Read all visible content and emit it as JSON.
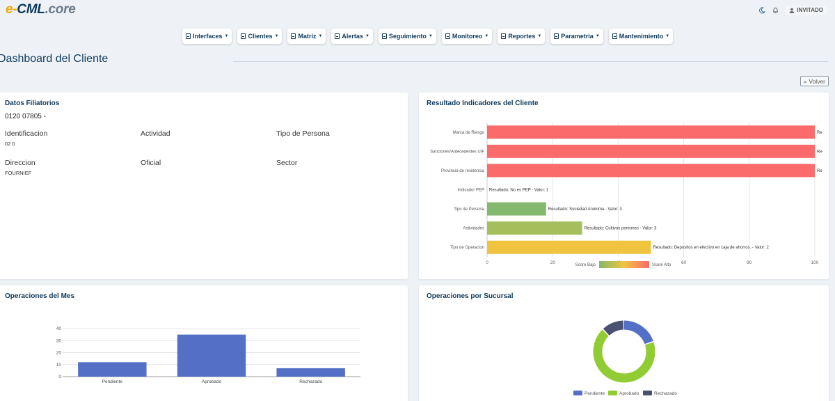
{
  "app": {
    "logo_e": "e-",
    "logo_cml": "CML",
    "logo_core": ".core",
    "user_label": "INVITADO"
  },
  "nav": [
    {
      "label": "Interfaces"
    },
    {
      "label": "Clientes"
    },
    {
      "label": "Matriz"
    },
    {
      "label": "Alertas"
    },
    {
      "label": "Seguimiento"
    },
    {
      "label": "Monitoreo"
    },
    {
      "label": "Reportes"
    },
    {
      "label": "Parametria"
    },
    {
      "label": "Mantenimiento"
    }
  ],
  "page": {
    "title": "Dashboard del Cliente",
    "back_label": "Volver"
  },
  "filiatorios": {
    "title": "Datos Filiatorios",
    "client_id": "0120        07805 -",
    "identificacion_label": "Identificacion",
    "identificacion_value": "02       0",
    "actividad_label": "Actividad",
    "tipo_persona_label": "Tipo de Persona",
    "direccion_label": "Direccion",
    "direccion_value": "FOURNIEF",
    "oficial_label": "Oficial",
    "sector_label": "Sector"
  },
  "colors": {
    "red": "#fb6b6b",
    "green": "#84b86c",
    "olive": "#a6bf5d",
    "yellow": "#f0c43f",
    "blue": "#5470c6",
    "lime": "#91cc35",
    "dark": "#4a5070",
    "navy": "#0e3a5c"
  },
  "chart_data": [
    {
      "type": "bar",
      "orientation": "horizontal",
      "title": "Resultado Indicadores del Cliente",
      "categories": [
        "Marca de Riesgo",
        "Sanciones/Antecedentes UIF",
        "Provincia de residencia",
        "Indicador PEP",
        "Tipo de Persona",
        "Actividades",
        "Tipo de Operacion"
      ],
      "values": [
        100,
        100,
        100,
        0,
        18,
        29,
        50
      ],
      "bar_colors": [
        "#fb6b6b",
        "#fb6b6b",
        "#fb6b6b",
        "#ffffff",
        "#84b86c",
        "#a6bf5d",
        "#f0c43f"
      ],
      "labels": [
        "Re",
        "Re",
        "Re",
        "Resultado: No es PEP - Valor: 1",
        "Resultado: Sociedad Anónima          - Valor: 3",
        "Resultado: Cultivos perennes - Valor: 3",
        "Resultado: Depositos en efectivo en caja de ahorros. - Valor: 2"
      ],
      "xlim": [
        0,
        100
      ],
      "xticks": [
        "0",
        "20",
        "40",
        "60",
        "80",
        "100"
      ],
      "legend_low": "Score Bajo",
      "legend_high": "Score Alto",
      "grid": true
    },
    {
      "type": "bar",
      "title": "Operaciones del Mes",
      "categories": [
        "Pendiente",
        "Aprobado",
        "Rechazado"
      ],
      "values": [
        12,
        35,
        7
      ],
      "ylim": [
        0,
        40
      ],
      "yticks": [
        "0",
        "10",
        "20",
        "30",
        "40"
      ],
      "color": "#5470c6",
      "grid": true
    },
    {
      "type": "pie",
      "title": "Operaciones por Sucursal",
      "categories": [
        "Pendiente",
        "Aprobado",
        "Rechazado"
      ],
      "values": [
        20,
        68,
        12
      ],
      "colors": [
        "#5470c6",
        "#91cc35",
        "#4a5070"
      ],
      "legend": "bottom"
    }
  ]
}
